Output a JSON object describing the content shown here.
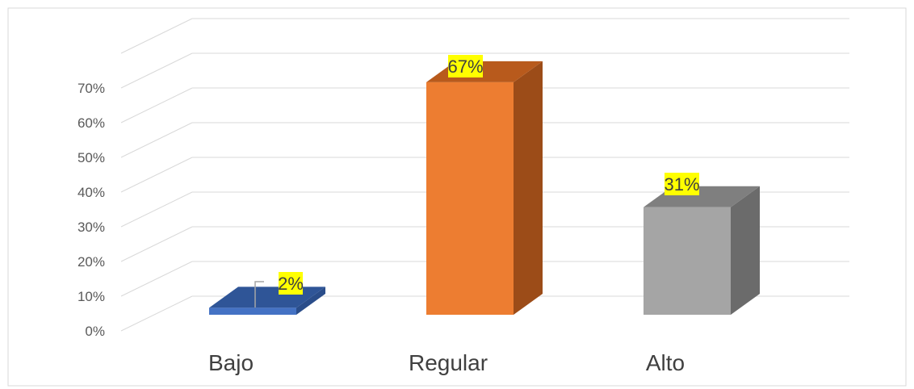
{
  "chart_data": {
    "type": "bar",
    "categories": [
      "Bajo",
      "Regular",
      "Alto"
    ],
    "values": [
      2,
      67,
      31
    ],
    "data_labels": [
      "2%",
      "67%",
      "31%"
    ],
    "y_ticks": [
      "0%",
      "10%",
      "20%",
      "30%",
      "40%",
      "50%",
      "60%",
      "70%"
    ],
    "ylim": [
      0,
      70
    ],
    "grid": true,
    "three_d": true,
    "legend": "none",
    "colors": {
      "Bajo": {
        "front": "#4472c4",
        "top": "#2f5597",
        "side": "#2a4d8a"
      },
      "Regular": {
        "front": "#ed7d31",
        "top": "#b85a1c",
        "side": "#9c4c18"
      },
      "Alto": {
        "front": "#a5a5a5",
        "top": "#7f7f7f",
        "side": "#6b6b6b"
      },
      "label_highlight": "#ffff00",
      "gridline": "#d9d9d9"
    }
  }
}
